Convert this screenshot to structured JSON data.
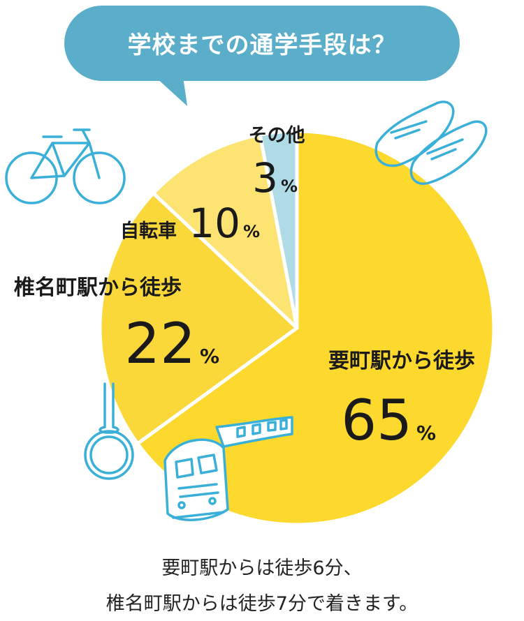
{
  "chart_data": {
    "type": "pie",
    "title": "学校までの通学手段は？",
    "slices": [
      {
        "label": "要町駅から徒歩",
        "value": 65,
        "unit": "%",
        "color": "#fcd92c"
      },
      {
        "label": "椎名町駅から徒歩",
        "value": 22,
        "unit": "%",
        "color": "#fbd83a"
      },
      {
        "label": "自転車",
        "value": 10,
        "unit": "%",
        "color": "#fde472"
      },
      {
        "label": "その他",
        "value": 3,
        "unit": "%",
        "color": "#aedbe6"
      }
    ]
  },
  "colors": {
    "bubble": "#5aaec9",
    "icon": "#3ab0d8",
    "text": "#1a1a1a"
  },
  "icons": [
    "bicycle-icon",
    "loafers-icon",
    "strap-handle-icon",
    "train-icon"
  ],
  "footnote": {
    "line1": "要町駅からは徒歩6分、",
    "line2": "椎名町駅からは徒歩7分で着きます。"
  }
}
